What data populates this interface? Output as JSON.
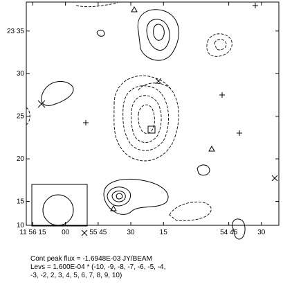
{
  "chart_data": {
    "type": "contour",
    "xticks": [
      {
        "value": 3375,
        "label": "11 56 15"
      },
      {
        "value": 3360,
        "label": "00"
      },
      {
        "value": 3345,
        "label": "55 45"
      },
      {
        "value": 3330,
        "label": "30"
      },
      {
        "value": 3315,
        "label": "15"
      },
      {
        "value": 3285,
        "label": "54 45"
      },
      {
        "value": 3270,
        "label": "30"
      }
    ],
    "xlim": [
      3378,
      3262
    ],
    "yticks": [
      {
        "value": 35,
        "label": "23 35"
      },
      30,
      25,
      20,
      15,
      10
    ],
    "ylim": [
      12.2,
      38.4
    ],
    "footer": [
      "Cont peak flux = -1.6948E-03 JY/BEAM",
      "Levs = 1.600E-04 * (-10, -9, -8, -7, -6, -5, -4,",
      "-3, -2, 2, 3, 4, 5, 6, 7, 8, 9, 10)"
    ]
  }
}
